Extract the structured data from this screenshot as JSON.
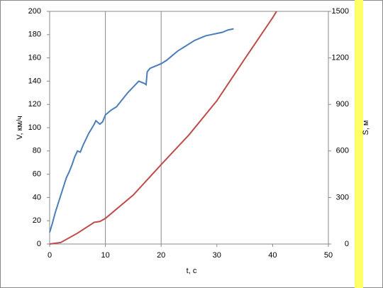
{
  "chart_data": {
    "type": "line",
    "xlabel": "t, c",
    "ylabel": "V, км/ч",
    "y2label": "S, м",
    "xlim": [
      0,
      50
    ],
    "xticks": [
      0,
      10,
      20,
      30,
      40,
      50
    ],
    "ylim": [
      0,
      200
    ],
    "yticks": [
      0,
      20,
      40,
      60,
      80,
      100,
      120,
      140,
      160,
      180,
      200
    ],
    "y2lim": [
      0,
      1500
    ],
    "y2ticks": [
      0,
      300,
      600,
      900,
      1200,
      1500
    ],
    "xgrid": [
      10,
      20
    ],
    "series": [
      {
        "name": "V",
        "color": "#4a7ebb",
        "x": [
          0,
          0.5,
          1,
          2,
          3,
          3.5,
          4,
          4.5,
          5,
          5.5,
          6,
          7,
          8,
          8.3,
          9,
          9.5,
          10,
          11,
          12,
          13,
          14,
          15,
          16,
          17,
          17.3,
          17.5,
          18,
          19,
          20,
          21,
          22,
          23,
          24,
          25,
          26,
          27,
          28,
          29,
          30,
          31,
          32,
          33
        ],
        "values": [
          10,
          18,
          27,
          42,
          57,
          62,
          68,
          75,
          80,
          79,
          85,
          95,
          103,
          106,
          103,
          105,
          111,
          115,
          118,
          124,
          130,
          135,
          140,
          138,
          137,
          148,
          151,
          153,
          155,
          158,
          162,
          166,
          169,
          172,
          175,
          177,
          179,
          180,
          181,
          182,
          184,
          185
        ]
      },
      {
        "name": "S",
        "color": "#be4b48",
        "axis": "y2",
        "x": [
          0,
          2,
          5,
          8,
          9,
          10,
          15,
          20,
          25,
          30,
          35,
          40,
          40.7
        ],
        "values": [
          0,
          10,
          70,
          140,
          145,
          165,
          316,
          512,
          704,
          924,
          1194,
          1459,
          1500
        ]
      }
    ]
  }
}
